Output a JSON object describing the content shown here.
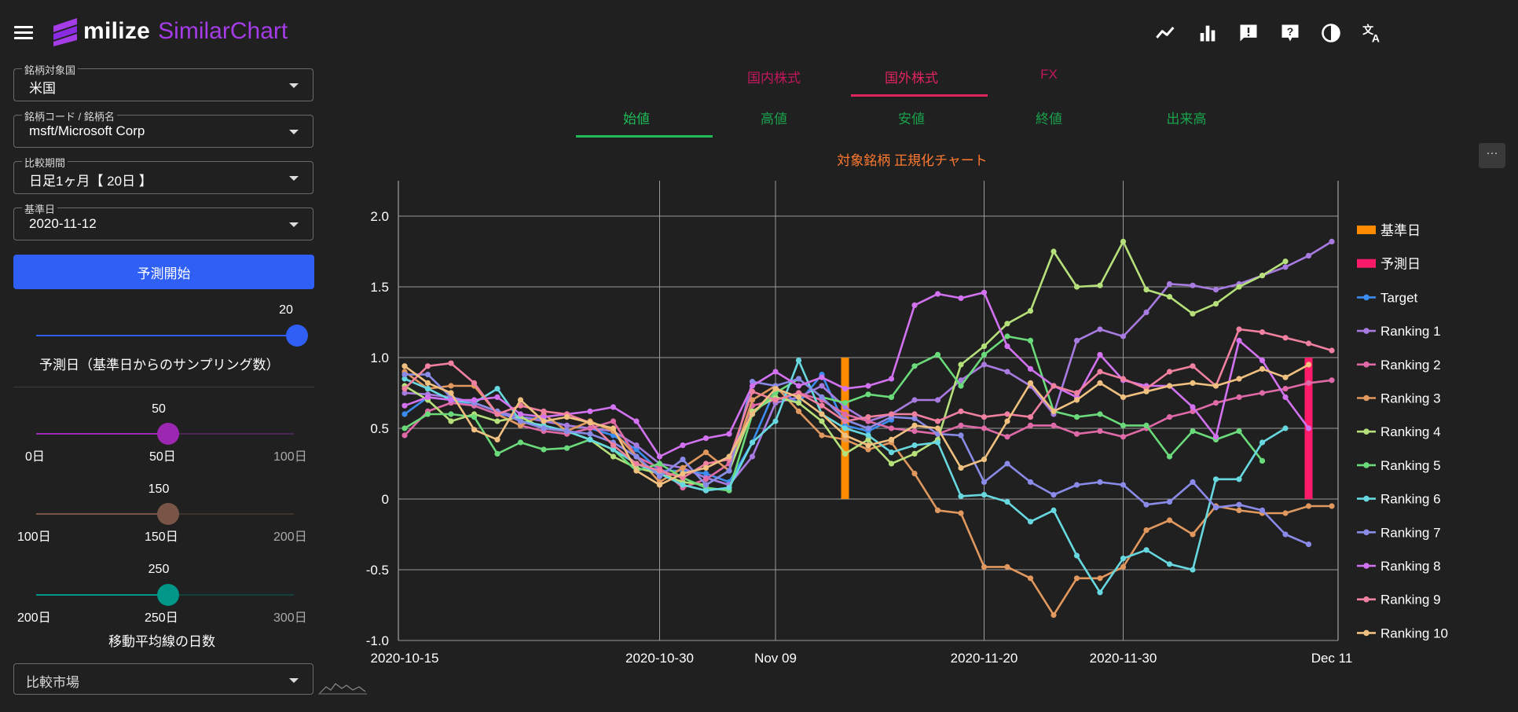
{
  "header": {
    "logo_text": "milize",
    "logo_sub": "SimilarChart",
    "icons": [
      "line-chart-icon",
      "bar-chart-icon",
      "feedback-icon",
      "help-icon",
      "contrast-icon",
      "translate-icon"
    ]
  },
  "sidebar": {
    "country": {
      "label": "銘柄対象国",
      "value": "米国"
    },
    "symbol": {
      "label": "銘柄コード / 銘柄名",
      "value": "msft/Microsoft Corp"
    },
    "period": {
      "label": "比較期間",
      "value": "日足1ヶ月【 20日 】"
    },
    "base_date": {
      "label": "基準日",
      "value": "2020-11-12"
    },
    "start_button": "予測開始",
    "forecast_slider": {
      "value": "20",
      "fraction": 1.0,
      "caption": "予測日（基準日からのサンプリング数）"
    },
    "ma_slider_1": {
      "value": "50",
      "min": "0日",
      "mid": "50日",
      "max": "100日",
      "fraction": 0.5,
      "color": "#9c27b0"
    },
    "ma_slider_2": {
      "value": "150",
      "min": "100日",
      "mid": "150日",
      "max": "200日",
      "fraction": 0.5,
      "color": "#795548"
    },
    "ma_slider_3": {
      "value": "250",
      "min": "200日",
      "mid": "250日",
      "max": "300日",
      "fraction": 0.5,
      "color": "#009688"
    },
    "ma_caption": "移動平均線の日数",
    "market": {
      "value": "比較市場"
    }
  },
  "market_tabs": [
    {
      "label": "国内株式",
      "active": false
    },
    {
      "label": "国外株式",
      "active": true
    },
    {
      "label": "FX",
      "active": false
    }
  ],
  "price_tabs": [
    {
      "label": "始値",
      "active": true
    },
    {
      "label": "高値",
      "active": false
    },
    {
      "label": "安値",
      "active": false
    },
    {
      "label": "終値",
      "active": false
    },
    {
      "label": "出来高",
      "active": false
    }
  ],
  "more_label": "···",
  "colors": {
    "accent_red": "#e0245e",
    "accent_green": "#1fba59",
    "title_orange": "#ff7a30",
    "primary_blue": "#2f5ff5"
  },
  "chart_data": {
    "type": "line",
    "title": "対象銘柄 正規化チャート",
    "x_ticks": [
      "2020-10-15",
      "2020-10-30",
      "Nov 09",
      "2020-11-20",
      "2020-11-30",
      "Dec 11"
    ],
    "x_tick_index": [
      0,
      11,
      16,
      25,
      31,
      40
    ],
    "y_ticks": [
      "2.0",
      "1.5",
      "1.0",
      "0.5",
      "0",
      "-0.5",
      "-1.0"
    ],
    "ylim": [
      -1.0,
      2.25
    ],
    "grid": true,
    "legend_position": "right",
    "base_bar": {
      "name": "基準日",
      "x_index": 19,
      "value": 1.0,
      "color": "#ff8c00"
    },
    "forecast_bar": {
      "name": "予測日",
      "x_index": 39,
      "value": 1.0,
      "color": "#ff1a6a"
    },
    "series": [
      {
        "name": "Target",
        "color": "#3b8cf0",
        "values": [
          0.6,
          0.72,
          0.7,
          0.66,
          0.6,
          0.58,
          0.56,
          0.52,
          0.5,
          0.45,
          0.35,
          0.2,
          0.2,
          0.18,
          0.12,
          0.4,
          0.78,
          0.68,
          0.88,
          0.52,
          0.48,
          0.56
        ]
      },
      {
        "name": "Ranking 1",
        "color": "#a77be0",
        "values": [
          0.75,
          0.74,
          0.72,
          0.68,
          0.62,
          0.58,
          0.55,
          0.52,
          0.5,
          0.48,
          0.38,
          0.25,
          0.22,
          0.15,
          0.1,
          0.3,
          0.68,
          0.72,
          0.8,
          0.65,
          0.55,
          0.6,
          0.7,
          0.7,
          0.84,
          0.95,
          0.9,
          0.8,
          0.6,
          1.12,
          1.2,
          1.15,
          1.32,
          1.52,
          1.51,
          1.48,
          1.52,
          1.58,
          1.64,
          1.72,
          1.82
        ]
      },
      {
        "name": "Ranking 2",
        "color": "#e06aa8",
        "values": [
          0.45,
          0.62,
          0.68,
          0.66,
          0.6,
          0.52,
          0.48,
          0.46,
          0.5,
          0.55,
          0.3,
          0.22,
          0.08,
          0.14,
          0.25,
          0.66,
          0.7,
          0.75,
          0.7,
          0.6,
          0.55,
          0.5,
          0.48,
          0.46,
          0.52,
          0.5,
          0.44,
          0.52,
          0.52,
          0.46,
          0.48,
          0.44,
          0.5,
          0.58,
          0.62,
          0.68,
          0.72,
          0.75,
          0.78,
          0.82,
          0.84
        ]
      },
      {
        "name": "Ranking 3",
        "color": "#e0985e",
        "values": [
          0.9,
          0.78,
          0.8,
          0.8,
          0.6,
          0.52,
          0.6,
          0.48,
          0.55,
          0.48,
          0.3,
          0.12,
          0.22,
          0.33,
          0.2,
          0.7,
          0.8,
          0.62,
          0.45,
          0.42,
          0.35,
          0.4,
          0.18,
          -0.08,
          -0.1,
          -0.48,
          -0.48,
          -0.56,
          -0.82,
          -0.56,
          -0.56,
          -0.48,
          -0.22,
          -0.15,
          -0.25,
          -0.05,
          -0.08,
          -0.1,
          -0.1,
          -0.05,
          -0.05
        ]
      },
      {
        "name": "Ranking 4",
        "color": "#b6e07a",
        "values": [
          0.8,
          0.7,
          0.55,
          0.6,
          0.55,
          0.58,
          0.5,
          0.48,
          0.42,
          0.3,
          0.22,
          0.18,
          0.12,
          0.1,
          0.2,
          0.62,
          0.72,
          0.68,
          0.55,
          0.32,
          0.42,
          0.25,
          0.32,
          0.42,
          0.95,
          1.08,
          1.24,
          1.33,
          1.75,
          1.5,
          1.51,
          1.82,
          1.48,
          1.43,
          1.31,
          1.38,
          1.5,
          1.58,
          1.68
        ]
      },
      {
        "name": "Ranking 5",
        "color": "#6ada7a",
        "values": [
          0.5,
          0.6,
          0.6,
          0.58,
          0.32,
          0.4,
          0.35,
          0.36,
          0.42,
          0.35,
          0.2,
          0.25,
          0.15,
          0.08,
          0.06,
          0.6,
          0.75,
          0.85,
          0.72,
          0.68,
          0.74,
          0.72,
          0.94,
          1.02,
          0.8,
          1.02,
          1.15,
          1.12,
          0.62,
          0.58,
          0.6,
          0.52,
          0.52,
          0.3,
          0.48,
          0.42,
          0.48,
          0.27
        ]
      },
      {
        "name": "Ranking 6",
        "color": "#68d8e0",
        "values": [
          0.85,
          0.78,
          0.7,
          0.68,
          0.78,
          0.55,
          0.52,
          0.48,
          0.42,
          0.35,
          0.25,
          0.18,
          0.1,
          0.06,
          0.08,
          0.4,
          0.55,
          0.98,
          0.6,
          0.5,
          0.45,
          0.33,
          0.38,
          0.4,
          0.02,
          0.03,
          -0.02,
          -0.16,
          -0.08,
          -0.4,
          -0.66,
          -0.42,
          -0.36,
          -0.46,
          -0.5,
          0.14,
          0.14,
          0.4,
          0.5
        ]
      },
      {
        "name": "Ranking 7",
        "color": "#8a8ae8",
        "values": [
          0.88,
          0.88,
          0.72,
          0.68,
          0.62,
          0.55,
          0.5,
          0.48,
          0.46,
          0.4,
          0.3,
          0.16,
          0.28,
          0.1,
          0.2,
          0.83,
          0.8,
          0.85,
          0.72,
          0.56,
          0.5,
          0.58,
          0.57,
          0.46,
          0.45,
          0.12,
          0.25,
          0.12,
          0.03,
          0.1,
          0.12,
          0.1,
          -0.04,
          -0.02,
          0.12,
          -0.06,
          -0.04,
          -0.08,
          -0.25,
          -0.32
        ]
      },
      {
        "name": "Ranking 8",
        "color": "#d272f0",
        "values": [
          0.66,
          0.72,
          0.7,
          0.7,
          0.72,
          0.6,
          0.58,
          0.6,
          0.62,
          0.65,
          0.55,
          0.3,
          0.38,
          0.43,
          0.46,
          0.8,
          0.9,
          0.8,
          0.86,
          0.78,
          0.8,
          0.85,
          1.37,
          1.45,
          1.42,
          1.46,
          1.08,
          0.92,
          0.8,
          0.72,
          1.02,
          0.84,
          0.8,
          0.8,
          0.65,
          0.44,
          1.12,
          0.98,
          0.72,
          0.5
        ]
      },
      {
        "name": "Ranking 9",
        "color": "#f080a0",
        "values": [
          0.78,
          0.94,
          0.96,
          0.82,
          0.6,
          0.66,
          0.62,
          0.6,
          0.54,
          0.38,
          0.25,
          0.2,
          0.15,
          0.25,
          0.28,
          0.76,
          0.7,
          0.75,
          0.66,
          0.55,
          0.58,
          0.6,
          0.6,
          0.55,
          0.62,
          0.58,
          0.6,
          0.58,
          0.8,
          0.75,
          0.9,
          0.85,
          0.78,
          0.9,
          0.94,
          0.8,
          1.2,
          1.18,
          1.14,
          1.1,
          1.05
        ]
      },
      {
        "name": "Ranking 10",
        "color": "#f0c080",
        "values": [
          0.94,
          0.82,
          0.75,
          0.49,
          0.42,
          0.7,
          0.55,
          0.58,
          0.54,
          0.5,
          0.2,
          0.1,
          0.18,
          0.22,
          0.3,
          0.6,
          0.78,
          0.72,
          0.6,
          0.45,
          0.38,
          0.42,
          0.52,
          0.5,
          0.22,
          0.28,
          0.55,
          0.82,
          0.62,
          0.7,
          0.82,
          0.72,
          0.76,
          0.8,
          0.82,
          0.8,
          0.85,
          0.92,
          0.86,
          0.95
        ]
      }
    ]
  }
}
